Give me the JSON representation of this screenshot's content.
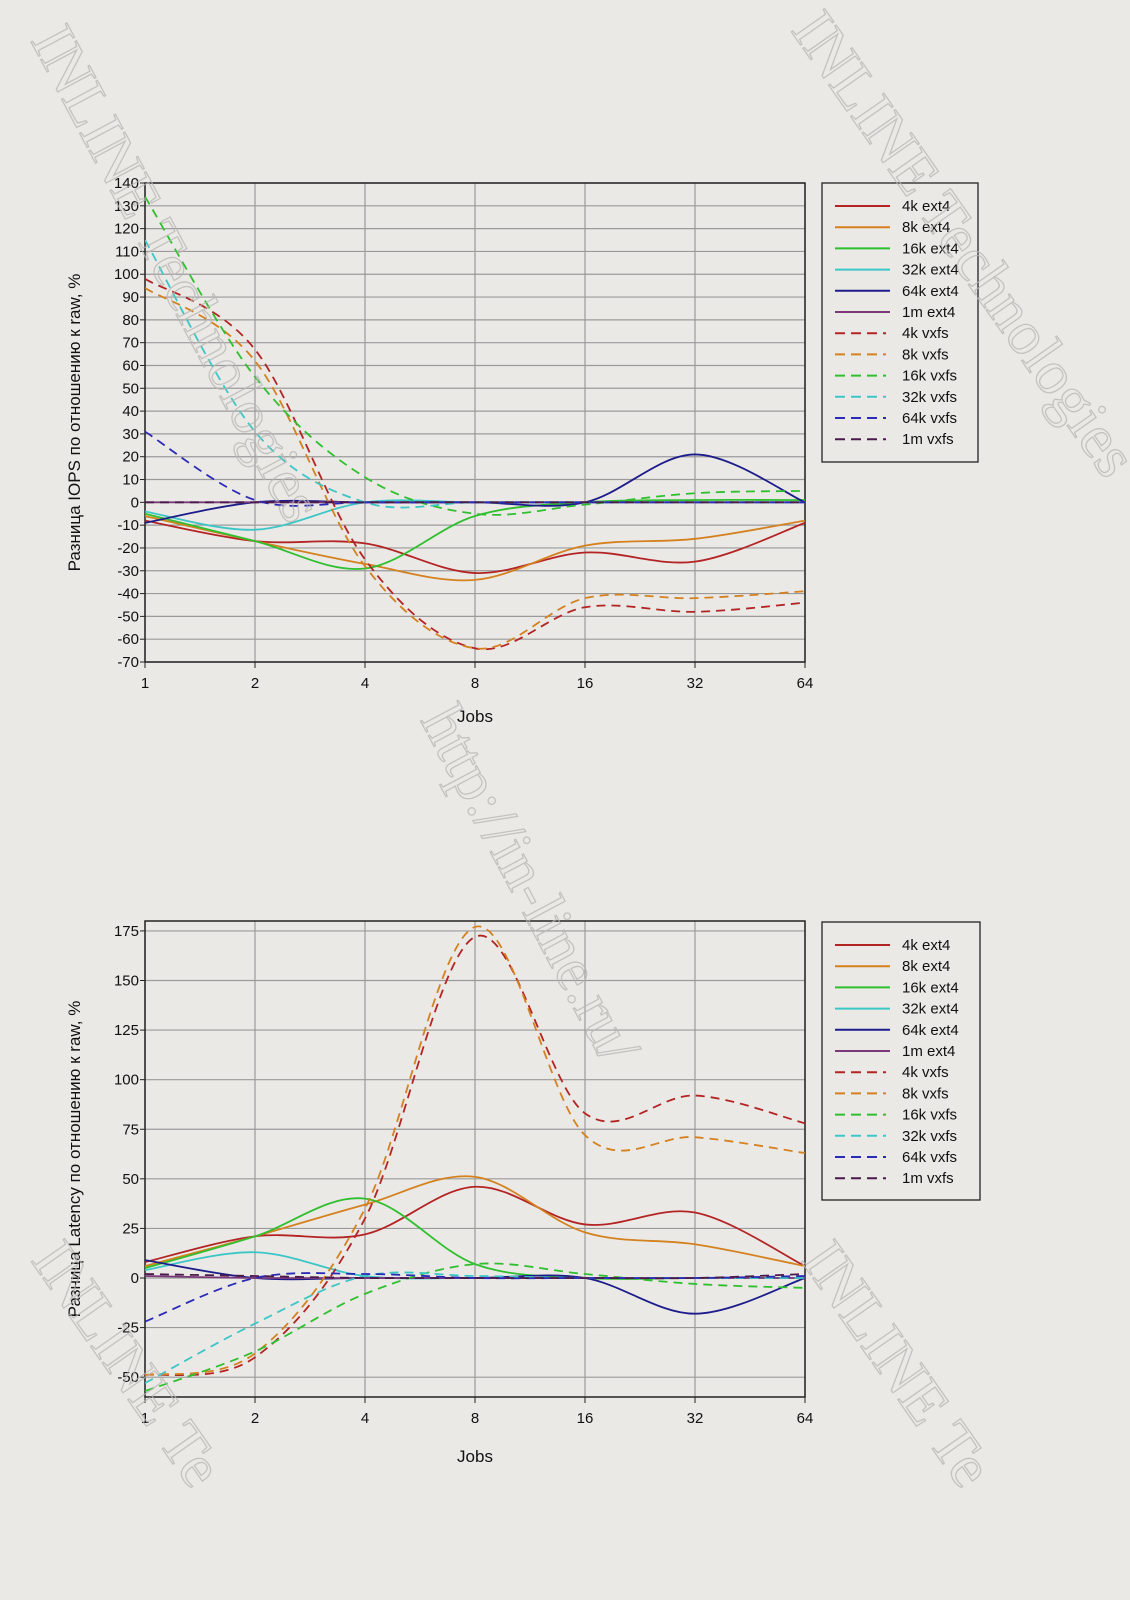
{
  "watermarks": [
    "INLINE Technologies",
    "INLINE Technologies",
    "http://in-line.ru/",
    "INLINE Te",
    "INLINE Te"
  ],
  "chart_data": [
    {
      "type": "line",
      "title": "",
      "xlabel": "Jobs",
      "ylabel": "Разница IOPS по отношению к raw, %",
      "xscale": "log2",
      "x": [
        1,
        2,
        4,
        8,
        16,
        32,
        64
      ],
      "x_tick_labels": [
        "1",
        "2",
        "4",
        "8",
        "16",
        "32",
        "64"
      ],
      "ylim": [
        -70,
        140
      ],
      "y_ticks": [
        140,
        130,
        120,
        110,
        100,
        90,
        80,
        70,
        60,
        50,
        40,
        30,
        20,
        10,
        0,
        -10,
        -20,
        -30,
        -40,
        -50,
        -60,
        -70
      ],
      "grid": true,
      "legend_placement": "right",
      "series": [
        {
          "name": "4k ext4",
          "color": "#b32424",
          "dash": false,
          "values": [
            -8,
            -17,
            -18,
            -31,
            -22,
            -26,
            -9
          ]
        },
        {
          "name": "8k ext4",
          "color": "#d4811f",
          "dash": false,
          "values": [
            -6,
            -17,
            -27,
            -34,
            -19,
            -16,
            -8
          ]
        },
        {
          "name": "16k ext4",
          "color": "#2fbf2f",
          "dash": false,
          "values": [
            -5,
            -17,
            -29,
            -6,
            0,
            1,
            1
          ]
        },
        {
          "name": "32k ext4",
          "color": "#3cc6c6",
          "dash": false,
          "values": [
            -4,
            -12,
            0,
            0,
            0,
            0,
            0
          ]
        },
        {
          "name": "64k ext4",
          "color": "#1c1c8a",
          "dash": false,
          "values": [
            -9,
            0,
            0,
            0,
            0,
            21,
            0
          ]
        },
        {
          "name": "1m ext4",
          "color": "#7a3a7a",
          "dash": false,
          "values": [
            0,
            0,
            0,
            0,
            0,
            0,
            0
          ]
        },
        {
          "name": "4k vxfs",
          "color": "#b32424",
          "dash": true,
          "values": [
            98,
            67,
            -25,
            -64,
            -46,
            -48,
            -44
          ]
        },
        {
          "name": "8k vxfs",
          "color": "#d4811f",
          "dash": true,
          "values": [
            94,
            62,
            -28,
            -64,
            -42,
            -42,
            -39
          ]
        },
        {
          "name": "16k vxfs",
          "color": "#2fbf2f",
          "dash": true,
          "values": [
            134,
            55,
            11,
            -5,
            -1,
            4,
            5
          ]
        },
        {
          "name": "32k vxfs",
          "color": "#3cc6c6",
          "dash": true,
          "values": [
            115,
            31,
            0,
            0,
            0,
            0,
            0
          ]
        },
        {
          "name": "64k vxfs",
          "color": "#2a2ab8",
          "dash": true,
          "values": [
            31,
            1,
            0,
            0,
            0,
            0,
            0
          ]
        },
        {
          "name": "1m vxfs",
          "color": "#4a1a4a",
          "dash": true,
          "values": [
            0,
            0,
            0,
            0,
            0,
            0,
            0
          ]
        }
      ]
    },
    {
      "type": "line",
      "title": "",
      "xlabel": "Jobs",
      "ylabel": "Разница Latency по отношению к raw, %",
      "xscale": "log2",
      "x": [
        1,
        2,
        4,
        8,
        16,
        32,
        64
      ],
      "x_tick_labels": [
        "1",
        "2",
        "4",
        "8",
        "16",
        "32",
        "64"
      ],
      "ylim": [
        -60,
        180
      ],
      "y_ticks": [
        175,
        150,
        125,
        100,
        75,
        50,
        25,
        0,
        -25,
        -50
      ],
      "grid": true,
      "legend_placement": "right",
      "series": [
        {
          "name": "4k ext4",
          "color": "#b32424",
          "dash": false,
          "values": [
            8,
            21,
            22,
            46,
            27,
            33,
            6
          ]
        },
        {
          "name": "8k ext4",
          "color": "#d4811f",
          "dash": false,
          "values": [
            6,
            21,
            37,
            51,
            23,
            17,
            6
          ]
        },
        {
          "name": "16k ext4",
          "color": "#2fbf2f",
          "dash": false,
          "values": [
            5,
            21,
            40,
            7,
            0,
            0,
            0
          ]
        },
        {
          "name": "32k ext4",
          "color": "#3cc6c6",
          "dash": false,
          "values": [
            4,
            13,
            1,
            0,
            0,
            0,
            0
          ]
        },
        {
          "name": "64k ext4",
          "color": "#1c1c8a",
          "dash": false,
          "values": [
            9,
            0,
            0,
            0,
            0,
            -18,
            0
          ]
        },
        {
          "name": "1m ext4",
          "color": "#7a3a7a",
          "dash": false,
          "values": [
            1,
            0,
            0,
            0,
            0,
            0,
            0
          ]
        },
        {
          "name": "4k vxfs",
          "color": "#b32424",
          "dash": true,
          "values": [
            -49,
            -40,
            30,
            172,
            83,
            92,
            78
          ]
        },
        {
          "name": "8k vxfs",
          "color": "#d4811f",
          "dash": true,
          "values": [
            -49,
            -38,
            35,
            177,
            72,
            71,
            63
          ]
        },
        {
          "name": "16k vxfs",
          "color": "#2fbf2f",
          "dash": true,
          "values": [
            -57,
            -37,
            -8,
            7,
            2,
            -3,
            -5
          ]
        },
        {
          "name": "32k vxfs",
          "color": "#3cc6c6",
          "dash": true,
          "values": [
            -53,
            -23,
            1,
            1,
            0,
            0,
            0
          ]
        },
        {
          "name": "64k vxfs",
          "color": "#2a2ab8",
          "dash": true,
          "values": [
            -22,
            0,
            2,
            0,
            0,
            0,
            1
          ]
        },
        {
          "name": "1m vxfs",
          "color": "#4a1a4a",
          "dash": true,
          "values": [
            2,
            1,
            0,
            0,
            0,
            0,
            2
          ]
        }
      ]
    }
  ]
}
